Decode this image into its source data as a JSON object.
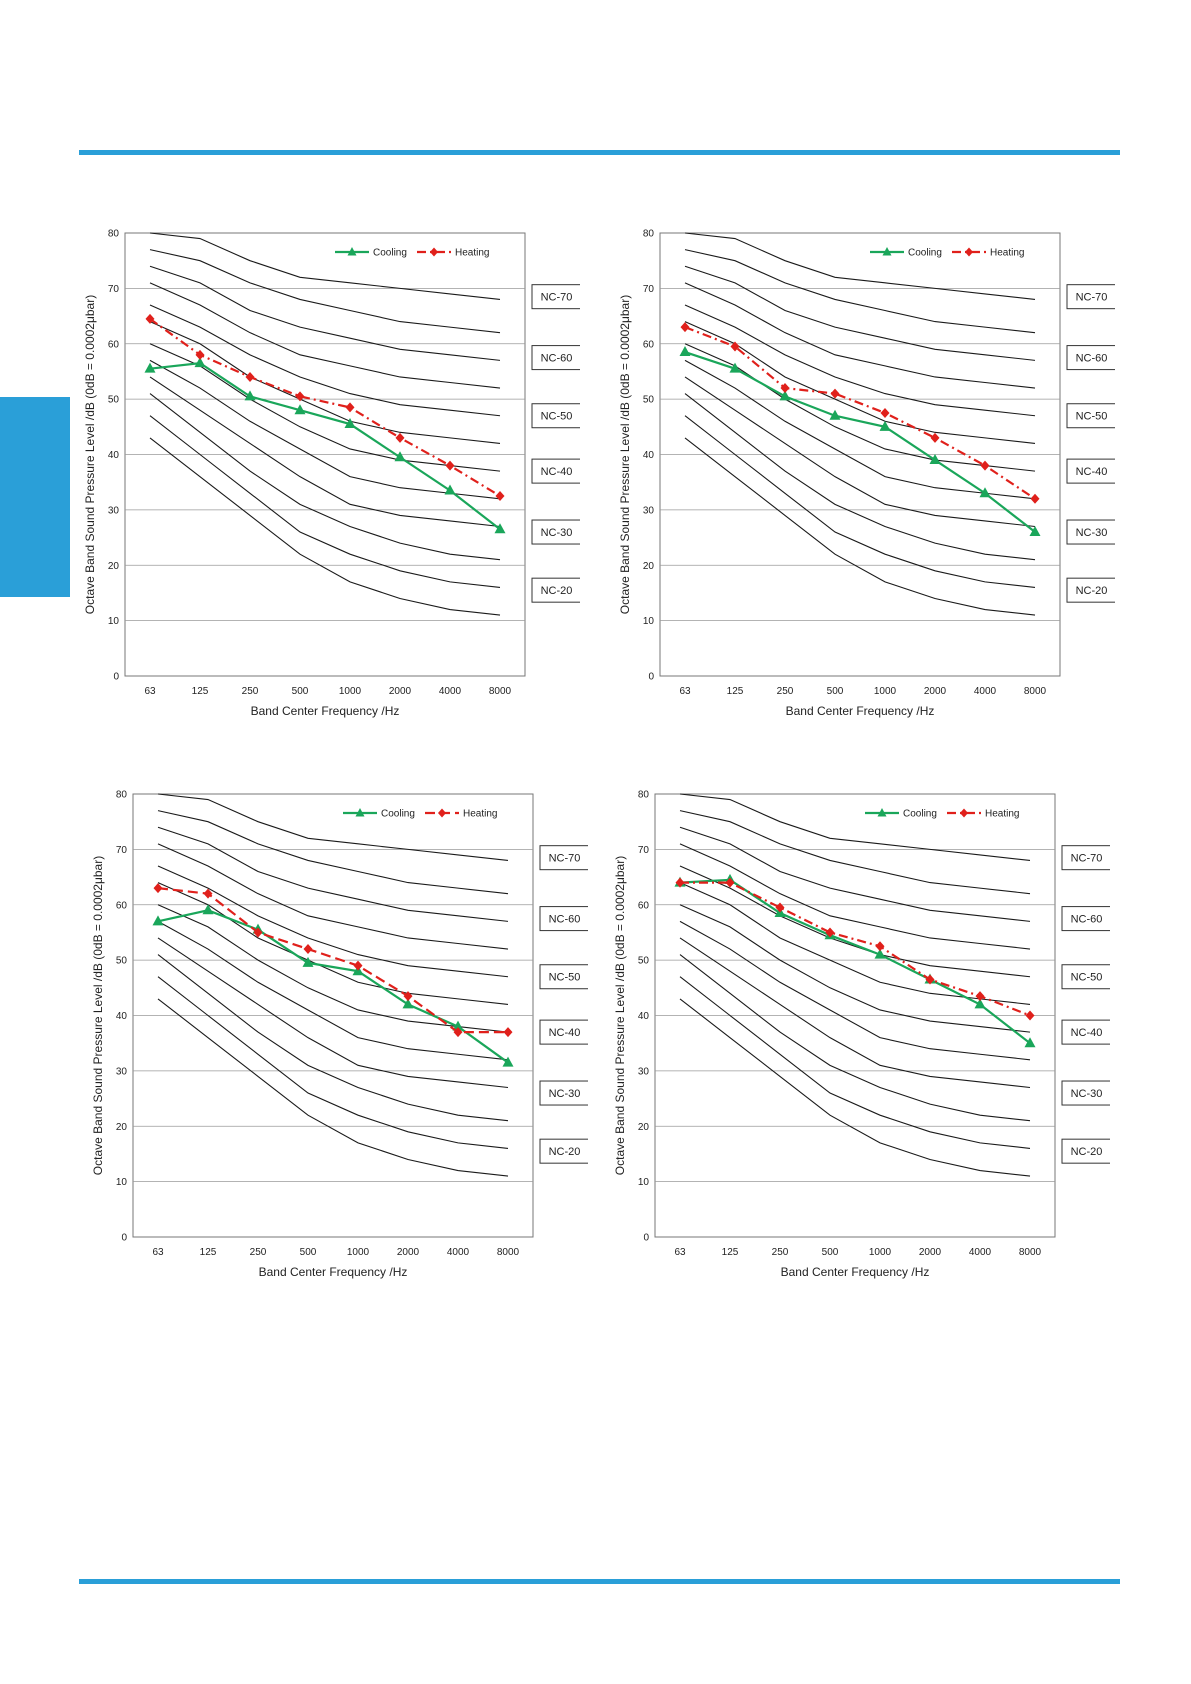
{
  "colors": {
    "accent": "#2a9fd8",
    "cooling": "#1aa65a",
    "heating": "#e0201b"
  },
  "charts": [
    {
      "title": "",
      "xlabel": "Band Center Frequency /Hz",
      "ylabel": "Octave Band Sound Pressure Level /dB (0dB = 0.0002μbar)",
      "legend_cooling": "Cooling",
      "legend_heating": "Heating",
      "legend_heating_style": "dashdot"
    },
    {
      "title": "",
      "xlabel": "Band Center Frequency /Hz",
      "ylabel": "Octave Band Sound Pressure Level /dB (0dB = 0.0002μbar)",
      "legend_cooling": "Cooling",
      "legend_heating": "Heating",
      "legend_heating_style": "dashdot"
    },
    {
      "title": "",
      "xlabel": "Band Center Frequency /Hz",
      "ylabel": "Octave Band Sound Pressure Level /dB (0dB = 0.0002μbar)",
      "legend_cooling": "Cooling",
      "legend_heating": "Heating",
      "legend_heating_style": "dash"
    },
    {
      "title": "",
      "xlabel": "Band Center Frequency /Hz",
      "ylabel": "Octave Band Sound Pressure Level /dB (0dB = 0.0002μbar)",
      "legend_cooling": "Cooling",
      "legend_heating": "Heating",
      "legend_heating_style": "dashdot"
    }
  ],
  "chart_data": [
    {
      "type": "line",
      "categories": [
        "63",
        "125",
        "250",
        "500",
        "1000",
        "2000",
        "4000",
        "8000"
      ],
      "ylim": [
        0,
        80
      ],
      "yticks": [
        0,
        10,
        20,
        30,
        40,
        50,
        60,
        70,
        80
      ],
      "grid": true,
      "legend": "top-right",
      "series": [
        {
          "name": "Cooling",
          "values": [
            55.5,
            56.5,
            50.5,
            48,
            45.5,
            39.5,
            33.5,
            26.5
          ]
        },
        {
          "name": "Heating",
          "values": [
            64.5,
            58,
            54,
            50.5,
            48.5,
            43,
            38,
            32.5
          ]
        }
      ],
      "nc_labels": [
        "NC-70",
        "NC-60",
        "NC-50",
        "NC-40",
        "NC-30",
        "NC-20"
      ]
    },
    {
      "type": "line",
      "categories": [
        "63",
        "125",
        "250",
        "500",
        "1000",
        "2000",
        "4000",
        "8000"
      ],
      "ylim": [
        0,
        80
      ],
      "yticks": [
        0,
        10,
        20,
        30,
        40,
        50,
        60,
        70,
        80
      ],
      "grid": true,
      "legend": "top-right",
      "series": [
        {
          "name": "Cooling",
          "values": [
            58.5,
            55.5,
            50.5,
            47,
            45,
            39,
            33,
            26
          ]
        },
        {
          "name": "Heating",
          "values": [
            63,
            59.5,
            52,
            51,
            47.5,
            43,
            38,
            32
          ]
        }
      ],
      "nc_labels": [
        "NC-70",
        "NC-60",
        "NC-50",
        "NC-40",
        "NC-30",
        "NC-20"
      ]
    },
    {
      "type": "line",
      "categories": [
        "63",
        "125",
        "250",
        "500",
        "1000",
        "2000",
        "4000",
        "8000"
      ],
      "ylim": [
        0,
        80
      ],
      "yticks": [
        0,
        10,
        20,
        30,
        40,
        50,
        60,
        70,
        80
      ],
      "grid": true,
      "legend": "top-right",
      "series": [
        {
          "name": "Cooling",
          "values": [
            57,
            59,
            55.5,
            49.5,
            48,
            42,
            38,
            31.5
          ]
        },
        {
          "name": "Heating",
          "values": [
            63,
            62,
            55,
            52,
            49,
            43.5,
            37,
            37
          ]
        }
      ],
      "nc_labels": [
        "NC-70",
        "NC-60",
        "NC-50",
        "NC-40",
        "NC-30",
        "NC-20"
      ]
    },
    {
      "type": "line",
      "categories": [
        "63",
        "125",
        "250",
        "500",
        "1000",
        "2000",
        "4000",
        "8000"
      ],
      "ylim": [
        0,
        80
      ],
      "yticks": [
        0,
        10,
        20,
        30,
        40,
        50,
        60,
        70,
        80
      ],
      "grid": true,
      "legend": "top-right",
      "series": [
        {
          "name": "Cooling",
          "values": [
            64,
            64.5,
            58.5,
            54.5,
            51,
            46.5,
            42,
            35
          ]
        },
        {
          "name": "Heating",
          "values": [
            64,
            64,
            59.5,
            55,
            52.5,
            46.5,
            43.5,
            40
          ]
        }
      ],
      "nc_labels": [
        "NC-70",
        "NC-60",
        "NC-50",
        "NC-40",
        "NC-30",
        "NC-20"
      ]
    }
  ]
}
